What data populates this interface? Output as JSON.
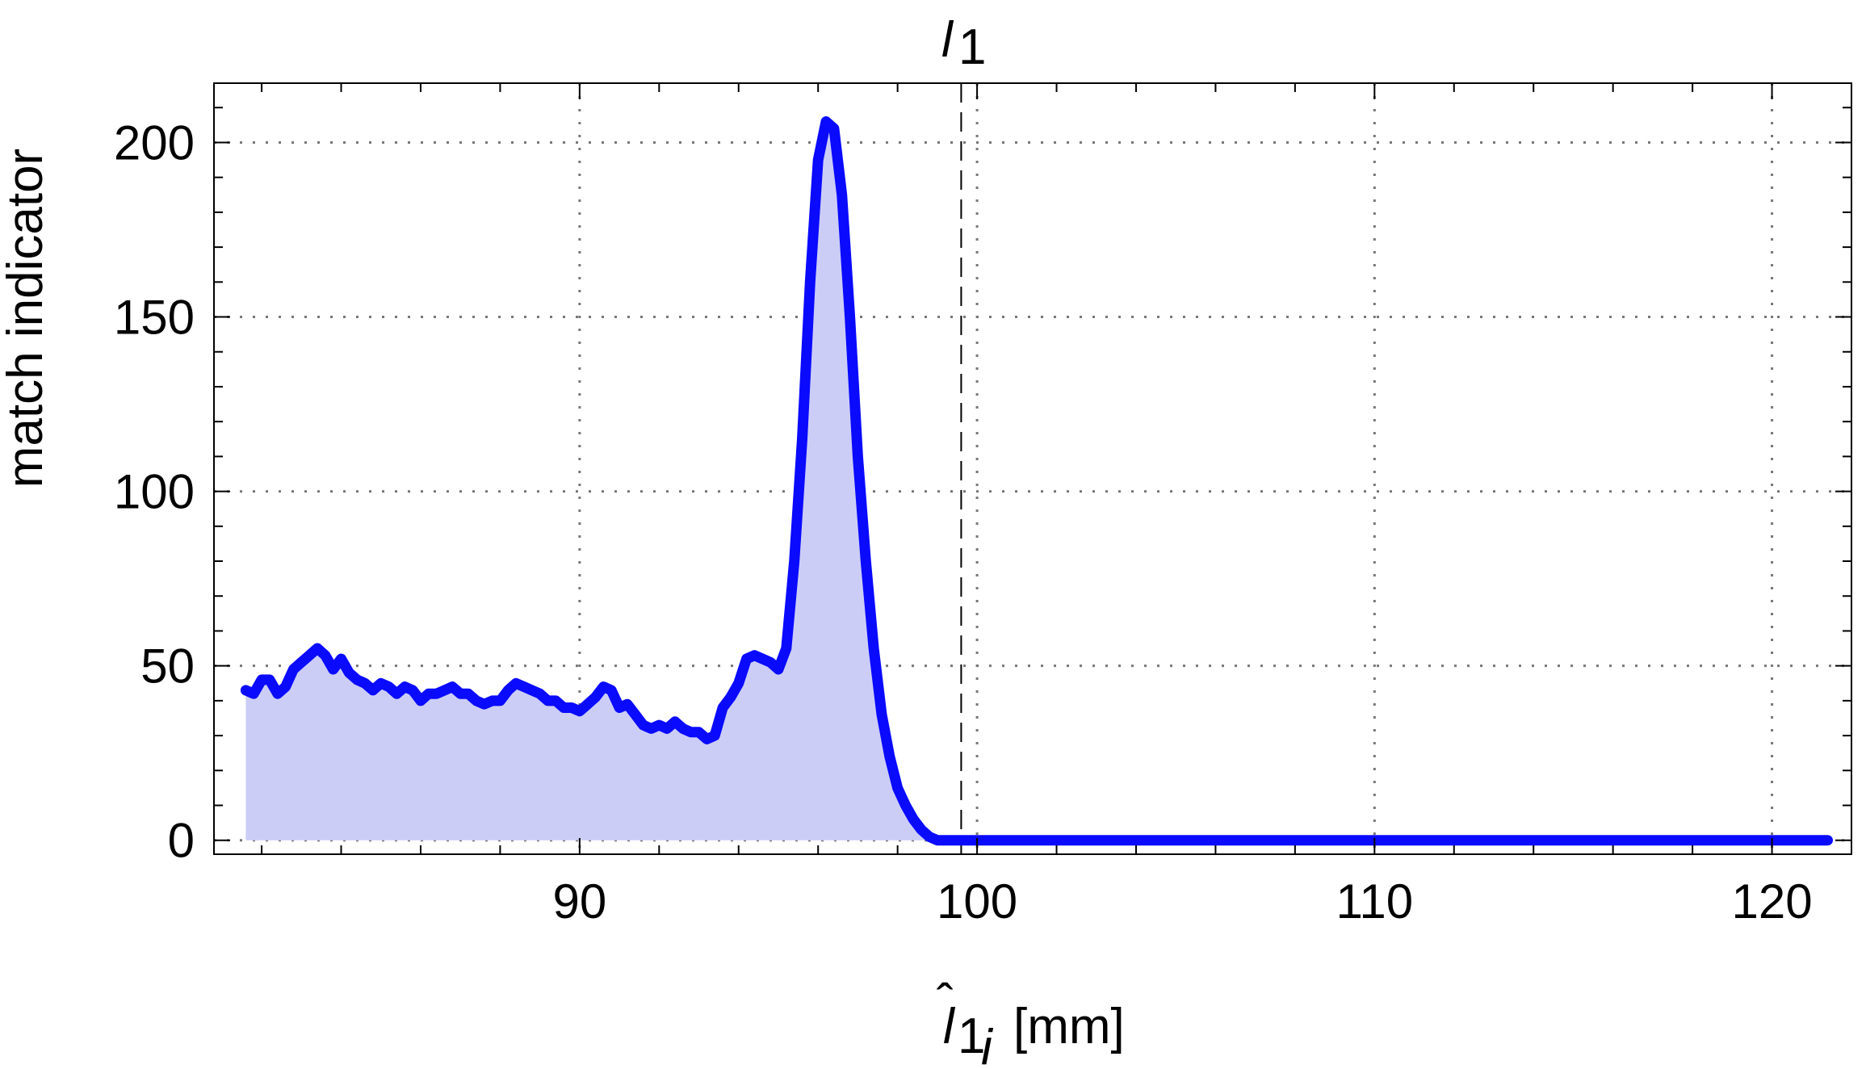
{
  "chart_data": {
    "type": "area",
    "ylabel": "match indicator",
    "xlabel": {
      "symbol": "l",
      "hat": "ˆ",
      "sub": "1",
      "subsub": "i",
      "unit": "[mm]"
    },
    "marker": {
      "x": 99.6,
      "label": "l",
      "label_sub": "1"
    },
    "xlim": [
      80.8,
      122.0
    ],
    "ylim": [
      -4,
      217
    ],
    "x_ticks": [
      90,
      100,
      110,
      120
    ],
    "x_tick_labels": [
      "90",
      "100",
      "110",
      "120"
    ],
    "y_ticks": [
      0,
      50,
      100,
      150,
      200
    ],
    "y_tick_labels": [
      "0",
      "50",
      "100",
      "150",
      "200"
    ],
    "grid": true,
    "colors": {
      "line": "#0a0aff",
      "fill": "#cccdf7",
      "grid": "#777777",
      "frame": "#000000"
    },
    "series": [
      {
        "x": [
          81.6,
          81.8,
          82.0,
          82.2,
          82.4,
          82.6,
          82.8,
          83.0,
          83.2,
          83.4,
          83.6,
          83.8,
          84.0,
          84.2,
          84.4,
          84.6,
          84.8,
          85.0,
          85.2,
          85.4,
          85.6,
          85.8,
          86.0,
          86.2,
          86.4,
          86.6,
          86.8,
          87.0,
          87.2,
          87.4,
          87.6,
          87.8,
          88.0,
          88.2,
          88.4,
          88.6,
          88.8,
          89.0,
          89.2,
          89.4,
          89.6,
          89.8,
          90.0,
          90.2,
          90.4,
          90.6,
          90.8,
          91.0,
          91.2,
          91.4,
          91.6,
          91.8,
          92.0,
          92.2,
          92.4,
          92.6,
          92.8,
          93.0,
          93.2,
          93.4,
          93.6,
          93.8,
          94.0,
          94.2,
          94.4,
          94.6,
          94.8,
          95.0,
          95.2,
          95.4,
          95.6,
          95.8,
          96.0,
          96.2,
          96.4,
          96.6,
          96.8,
          97.0,
          97.2,
          97.4,
          97.6,
          97.8,
          98.0,
          98.2,
          98.4,
          98.6,
          98.8,
          99.0,
          99.2,
          99.4,
          99.6,
          99.8,
          100.0,
          100.2,
          100.4,
          100.6,
          100.8,
          101.0,
          101.2,
          101.4,
          101.6,
          101.8,
          102.0,
          102.2,
          102.4,
          102.6,
          103.0,
          105.0,
          110.0,
          115.0,
          120.0,
          121.4
        ],
        "y": [
          43,
          42,
          46,
          46,
          42,
          44,
          49,
          51,
          53,
          55,
          53,
          49,
          52,
          48,
          46,
          45,
          43,
          45,
          44,
          42,
          44,
          43,
          40,
          42,
          42,
          43,
          44,
          42,
          42,
          40,
          39,
          40,
          40,
          43,
          45,
          44,
          43,
          42,
          40,
          40,
          38,
          38,
          37,
          39,
          41,
          44,
          43,
          38,
          39,
          36,
          33,
          32,
          33,
          32,
          34,
          32,
          31,
          31,
          29,
          30,
          38,
          41,
          45,
          52,
          53,
          52,
          51,
          49,
          55,
          80,
          115,
          160,
          195,
          206,
          204,
          185,
          150,
          110,
          80,
          55,
          36,
          24,
          15,
          10,
          6,
          3,
          1,
          0,
          0,
          0,
          0,
          0,
          0,
          0,
          0,
          0,
          0,
          0,
          0,
          0,
          0,
          0,
          0,
          0,
          0,
          0,
          0,
          0,
          0,
          0,
          0,
          0
        ]
      }
    ]
  }
}
